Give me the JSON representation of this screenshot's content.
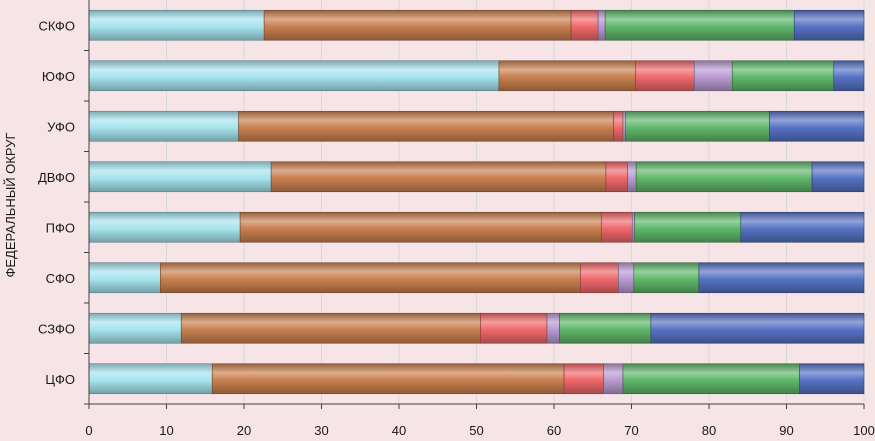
{
  "chart_data": {
    "type": "bar",
    "orientation": "horizontal",
    "stacked": "percent",
    "title": "",
    "ylabel": "ФЕДЕРАЛЬНЫЙ ОКРУГ",
    "xlabel": "",
    "xlim": [
      0,
      100
    ],
    "xticks": [
      0,
      10,
      20,
      30,
      40,
      50,
      60,
      70,
      80,
      90,
      100
    ],
    "grid": true,
    "legend": "none",
    "categories": [
      "СКФО",
      "ЮФО",
      "УФО",
      "ДВФО",
      "ПФО",
      "СФО",
      "СЗФО",
      "ЦФО"
    ],
    "series": [
      {
        "name": "series-1",
        "color": "#a6e4ee",
        "values": [
          22.6,
          52.9,
          19.3,
          23.5,
          19.5,
          9.2,
          11.9,
          15.9
        ]
      },
      {
        "name": "series-2",
        "color": "#c9804f",
        "values": [
          39.6,
          17.6,
          48.4,
          43.2,
          46.6,
          54.2,
          38.6,
          45.4
        ]
      },
      {
        "name": "series-3",
        "color": "#f0686a",
        "values": [
          3.5,
          7.6,
          1.2,
          2.8,
          4.0,
          4.9,
          8.6,
          5.1
        ]
      },
      {
        "name": "series-4",
        "color": "#b99ad2",
        "values": [
          0.9,
          4.9,
          0.3,
          1.1,
          0.3,
          2.0,
          1.6,
          2.5
        ]
      },
      {
        "name": "series-5",
        "color": "#5fb76a",
        "values": [
          24.4,
          13.1,
          18.6,
          22.7,
          13.7,
          8.4,
          11.8,
          22.8
        ]
      },
      {
        "name": "series-6",
        "color": "#5672c4",
        "values": [
          9.0,
          3.9,
          12.2,
          6.7,
          15.9,
          21.3,
          27.5,
          8.3
        ]
      }
    ]
  }
}
